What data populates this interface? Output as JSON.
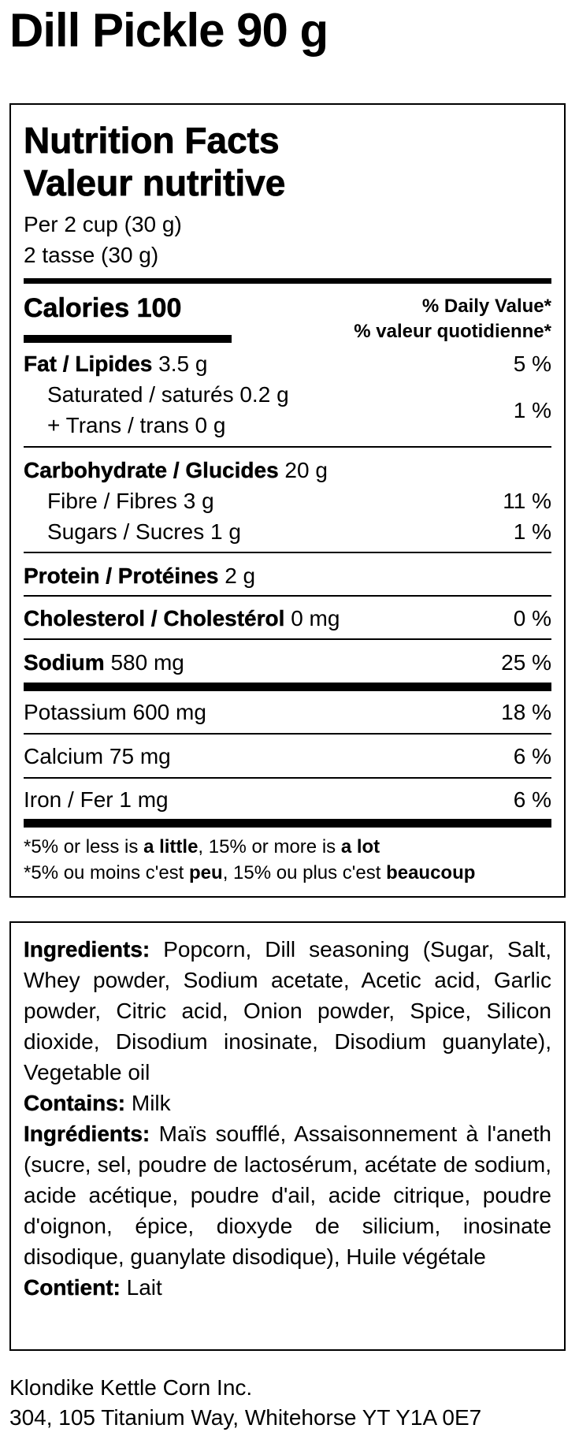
{
  "product_title": "Dill Pickle 90 g",
  "nutrition": {
    "title_en": "Nutrition Facts",
    "title_fr": "Valeur nutritive",
    "serving_en": "Per 2 cup (30 g)",
    "serving_fr": "2 tasse (30 g)",
    "calories_label": "Calories",
    "calories_value": "100",
    "dv_en": "% Daily Value*",
    "dv_fr": "% valeur quotidienne*",
    "fat": {
      "label": "Fat / Lipides",
      "amount": "3.5 g",
      "dv": "5 %"
    },
    "saturated": {
      "label": "Saturated / saturés",
      "amount": "0.2 g"
    },
    "trans": {
      "label": "+ Trans / trans",
      "amount": "0 g",
      "dv": "1 %"
    },
    "carb": {
      "label": "Carbohydrate / Glucides",
      "amount": "20 g"
    },
    "fibre": {
      "label": "Fibre / Fibres",
      "amount": "3 g",
      "dv": "11 %"
    },
    "sugars": {
      "label": "Sugars / Sucres",
      "amount": "1 g",
      "dv": "1 %"
    },
    "protein": {
      "label": "Protein / Protéines",
      "amount": "2 g"
    },
    "cholesterol": {
      "label": "Cholesterol / Cholestérol",
      "amount": "0 mg",
      "dv": "0 %"
    },
    "sodium": {
      "label": "Sodium",
      "amount": "580 mg",
      "dv": "25 %"
    },
    "potassium": {
      "label": "Potassium",
      "amount": "600 mg",
      "dv": "18 %"
    },
    "calcium": {
      "label": "Calcium",
      "amount": "75 mg",
      "dv": "6 %"
    },
    "iron": {
      "label": "Iron / Fer",
      "amount": "1 mg",
      "dv": "6 %"
    },
    "footnote_en": {
      "a": "*5% or less is ",
      "b": "a little",
      "c": ", 15% or more is ",
      "d": "a lot"
    },
    "footnote_fr": {
      "a": "*5% ou moins c'est ",
      "b": "peu",
      "c": ", 15% ou plus c'est ",
      "d": "beaucoup"
    }
  },
  "ingredients": {
    "en_label": "Ingredients:",
    "en_text": " Popcorn, Dill seasoning (Sugar, Salt, Whey powder, Sodium acetate, Acetic acid, Garlic powder, Citric acid, Onion powder, Spice, Silicon dioxide, Disodium inosinate, Disodium guanylate), Vegetable oil",
    "contains_label": "Contains:",
    "contains_text": " Milk",
    "fr_label": "Ingrédients:",
    "fr_text": " Maïs soufflé, Assaisonnement à l'aneth (sucre, sel, poudre de lactosérum, acétate de sodium, acide acétique, poudre d'ail, acide citrique, poudre d'oignon, épice, dioxyde de silicium, inosinate disodique, guanylate disodique), Huile végétale",
    "contient_label": "Contient:",
    "contient_text": " Lait"
  },
  "address": {
    "company": "Klondike Kettle Corn Inc.",
    "street": "304, 105 Titanium Way, Whitehorse YT Y1A 0E7"
  }
}
